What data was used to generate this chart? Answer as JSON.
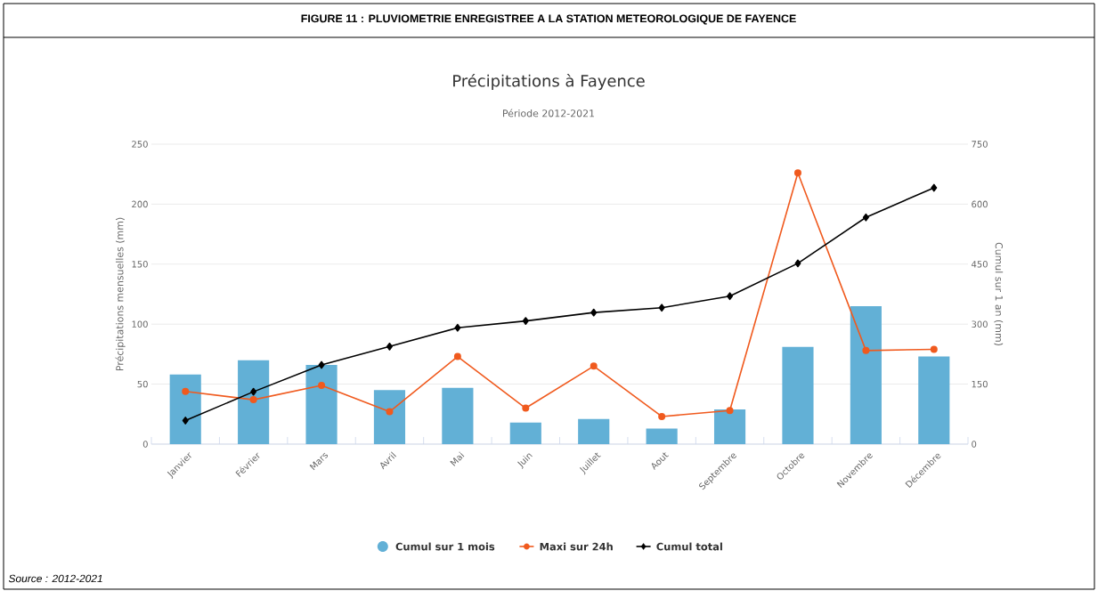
{
  "chart_data": {
    "type": "bar",
    "title": "Précipitations à Fayence",
    "subtitle": "Période 2012-2021",
    "ylabel": "Précipitations mensuelles (mm)",
    "y2label": "Cumul sur 1 an (mm)",
    "annotations": [
      "FIGURE 11 : PLUVIOMETRIE ENREGISTREE A LA STATION METEOROLOGIQUE DE FAYENCE",
      "Source : 2012-2021"
    ],
    "categories": [
      "Janvier",
      "Février",
      "Mars",
      "Avril",
      "Mai",
      "Juin",
      "Juillet",
      "Aout",
      "Septembre",
      "Octobre",
      "Novembre",
      "Décembre"
    ],
    "series": [
      {
        "name": "Cumul sur 1 mois",
        "color": "#62b0d6",
        "values": [
          58,
          70,
          66,
          45,
          47,
          18,
          21,
          13,
          29,
          81,
          115,
          73
        ]
      },
      {
        "name": "Maxi sur 24h",
        "type": "line",
        "color": "#f05a1e",
        "marker": "circle",
        "values": [
          44,
          37,
          49,
          27,
          73,
          30,
          65,
          23,
          28,
          226,
          78,
          79
        ]
      },
      {
        "name": "Cumul total",
        "type": "line",
        "color": "#000000",
        "marker": "diamond",
        "axis": "y2",
        "values": [
          59,
          131,
          198,
          244,
          291,
          308,
          329,
          341,
          370,
          452,
          567,
          641
        ]
      }
    ],
    "ylim": [
      0,
      250
    ],
    "yticks": [
      0,
      50,
      100,
      150,
      200,
      250
    ],
    "y2lim": [
      0,
      750
    ],
    "y2ticks": [
      0,
      150,
      300,
      450,
      600,
      750
    ],
    "grid": "y",
    "legend": "bottom",
    "line_style": "solid"
  }
}
